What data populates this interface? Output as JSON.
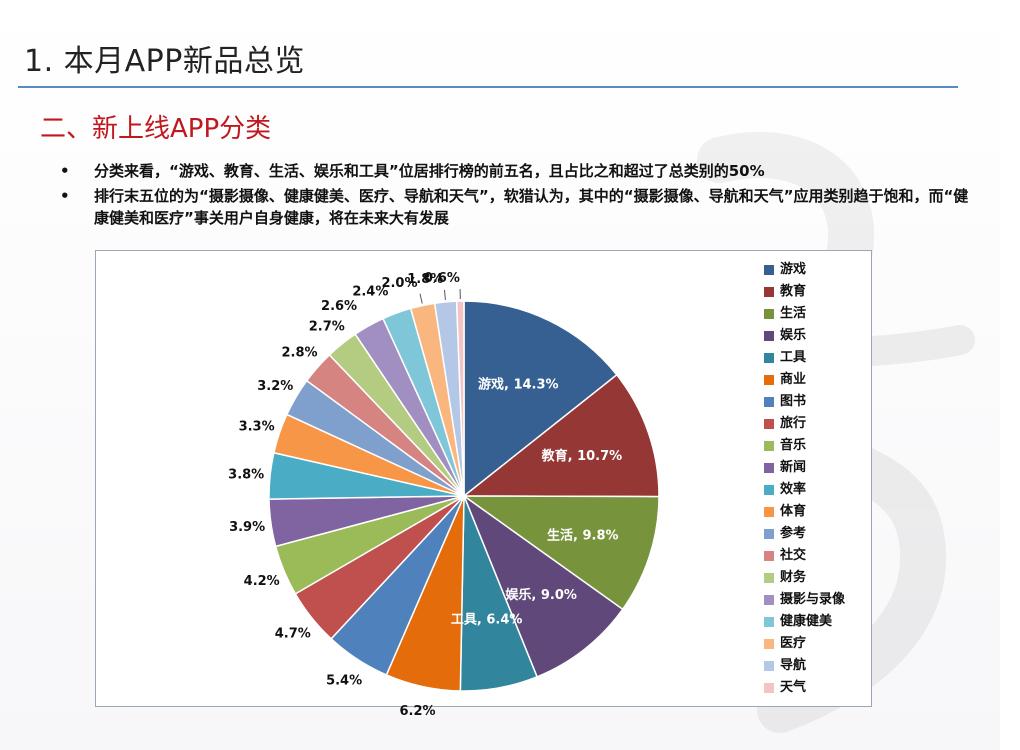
{
  "slide": {
    "title": "1. 本月APP新品总览",
    "subtitle": "二、新上线APP分类",
    "bullets": [
      "分类来看，“游戏、教育、生活、娱乐和工具”位居排行榜的前五名，且占比之和超过了总类别的50%",
      "排行末五位的为“摄影摄像、健康健美、医疗、导航和天气”，软猎认为，其中的“摄影摄像、导航和天气”应用类别趋于饱和，而“健康健美和医疗”事关用户自身健康，将在未来大有发展"
    ],
    "bullet_marker": "•"
  },
  "chart_data": {
    "type": "pie",
    "title": "",
    "categories": [
      "游戏",
      "教育",
      "生活",
      "娱乐",
      "工具",
      "商业",
      "图书",
      "旅行",
      "音乐",
      "新闻",
      "效率",
      "体育",
      "参考",
      "社交",
      "财务",
      "摄影与录像",
      "健康健美",
      "医疗",
      "导航",
      "天气"
    ],
    "values": [
      14.3,
      10.7,
      9.8,
      9.0,
      6.4,
      6.2,
      5.4,
      4.7,
      4.2,
      3.9,
      3.8,
      3.3,
      3.2,
      2.8,
      2.7,
      2.6,
      2.4,
      2.0,
      1.8,
      0.6
    ],
    "data_labels": [
      "游戏, 14.3%",
      "教育, 10.7%",
      "生活, 9.8%",
      "娱乐, 9.0%",
      "工具, 6.4%",
      "6.2%",
      "5.4%",
      "4.7%",
      "4.2%",
      "3.9%",
      "3.8%",
      "3.3%",
      "3.2%",
      "2.8%",
      "2.7%",
      "2.6%",
      "2.4%",
      "2.0%",
      "1.8%",
      "0.6%"
    ],
    "colors": [
      "#376092",
      "#953735",
      "#77933c",
      "#60497a",
      "#31859c",
      "#e46c0a",
      "#4f81bd",
      "#c0504d",
      "#9bbb59",
      "#8064a2",
      "#4bacc6",
      "#f79646",
      "#7f9fcc",
      "#d68482",
      "#b3cc82",
      "#a08fc0",
      "#7fc6d8",
      "#f9b67f",
      "#b4c7e7",
      "#f2c4c3"
    ],
    "legend_position": "right",
    "start_angle_deg": 0,
    "direction": "clockwise"
  }
}
